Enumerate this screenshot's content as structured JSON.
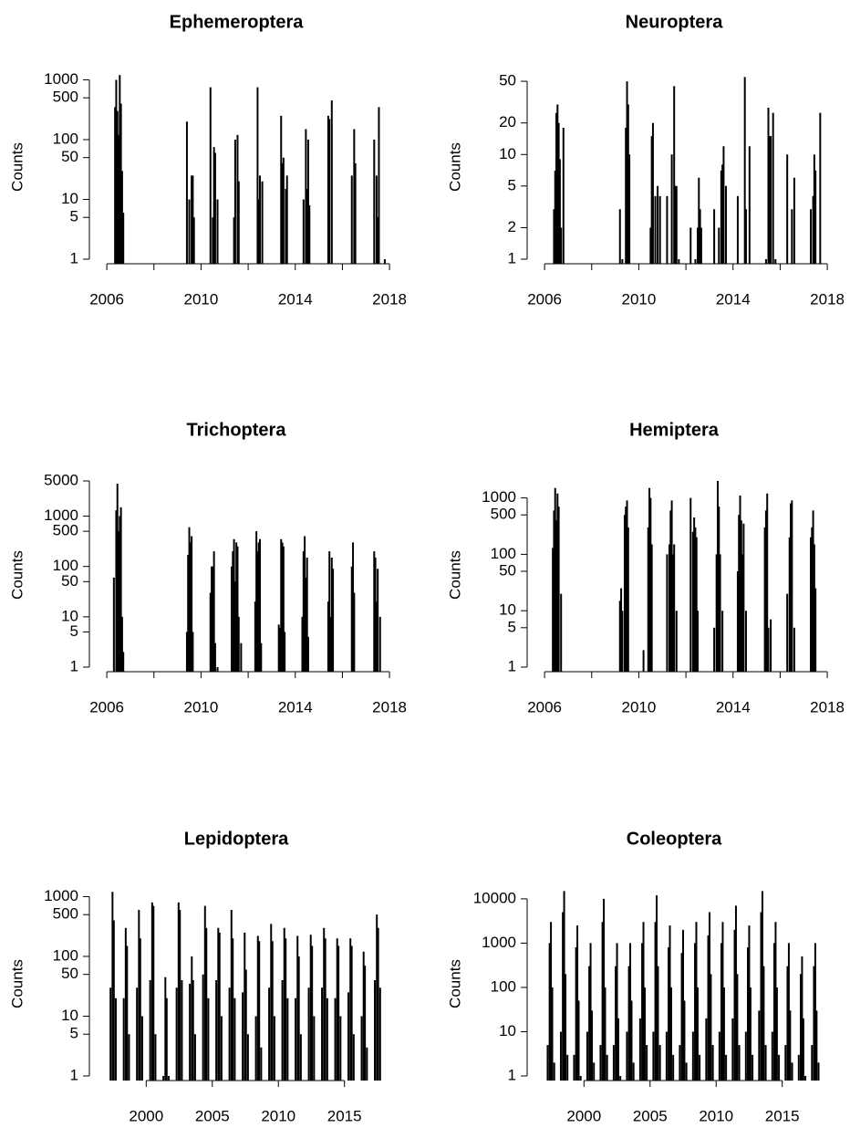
{
  "chart_data": [
    {
      "type": "spike",
      "title": "Ephemeroptera",
      "y_label": "Counts",
      "color": "#000000",
      "log_y": true,
      "xlim": [
        2005.26,
        2018.5
      ],
      "xticks": [
        2006,
        {
          "value": 2008,
          "label": null
        },
        2010,
        {
          "value": 2012,
          "label": null
        },
        2014,
        {
          "value": 2016,
          "label": null
        },
        2018
      ],
      "ylim": [
        1,
        1300
      ],
      "yticks": [
        1,
        5,
        10,
        50,
        100,
        500,
        1000
      ],
      "x": [
        2006.35,
        2006.4,
        2006.45,
        2006.5,
        2006.55,
        2006.6,
        2006.65,
        2006.7,
        2009.4,
        2009.5,
        2009.6,
        2009.65,
        2009.7,
        2010.4,
        2010.5,
        2010.55,
        2010.6,
        2010.7,
        2011.4,
        2011.45,
        2011.55,
        2011.6,
        2012.4,
        2012.45,
        2012.5,
        2012.6,
        2013.4,
        2013.45,
        2013.5,
        2013.6,
        2013.65,
        2014.35,
        2014.45,
        2014.5,
        2014.55,
        2014.6,
        2015.4,
        2015.45,
        2015.55,
        2016.4,
        2016.5,
        2016.55,
        2017.35,
        2017.45,
        2017.5,
        2017.55,
        2017.8
      ],
      "values": [
        350,
        1000,
        300,
        120,
        1200,
        400,
        30,
        6,
        200,
        10,
        25,
        25,
        5,
        750,
        5,
        75,
        60,
        10,
        5,
        100,
        120,
        20,
        750,
        10,
        25,
        20,
        250,
        40,
        50,
        15,
        25,
        10,
        150,
        15,
        100,
        8,
        250,
        220,
        450,
        25,
        150,
        40,
        100,
        25,
        5,
        350,
        1
      ]
    },
    {
      "type": "spike",
      "title": "Neuroptera",
      "y_label": "Counts",
      "color": "#000000",
      "log_y": true,
      "xlim": [
        2005.26,
        2018.5
      ],
      "xticks": [
        2006,
        {
          "value": 2008,
          "label": null
        },
        2010,
        {
          "value": 2012,
          "label": null
        },
        2014,
        {
          "value": 2016,
          "label": null
        },
        2018
      ],
      "ylim": [
        1,
        60
      ],
      "yticks": [
        1,
        2,
        5,
        10,
        20,
        50
      ],
      "x": [
        2006.4,
        2006.45,
        2006.5,
        2006.55,
        2006.6,
        2006.65,
        2006.7,
        2006.8,
        2009.2,
        2009.3,
        2009.45,
        2009.5,
        2009.55,
        2009.6,
        2010.5,
        2010.55,
        2010.6,
        2010.7,
        2010.8,
        2010.9,
        2011.2,
        2011.4,
        2011.5,
        2011.55,
        2011.6,
        2011.7,
        2012.2,
        2012.4,
        2012.5,
        2012.55,
        2012.6,
        2012.65,
        2013.2,
        2013.4,
        2013.5,
        2013.55,
        2013.6,
        2013.7,
        2014.2,
        2014.5,
        2014.55,
        2014.7,
        2015.4,
        2015.5,
        2015.55,
        2015.6,
        2015.7,
        2015.8,
        2016.3,
        2016.5,
        2016.6,
        2017.3,
        2017.4,
        2017.45,
        2017.5,
        2017.7
      ],
      "values": [
        3,
        7,
        25,
        30,
        20,
        9,
        2,
        18,
        3,
        1,
        18,
        50,
        30,
        10,
        2,
        15,
        20,
        4,
        5,
        4,
        4,
        10,
        45,
        5,
        5,
        1,
        2,
        1,
        2,
        6,
        3,
        2,
        3,
        2,
        7,
        8,
        12,
        5,
        4,
        55,
        3,
        12,
        1,
        28,
        15,
        15,
        25,
        1,
        10,
        3,
        6,
        3,
        4,
        10,
        7,
        25
      ]
    },
    {
      "type": "spike",
      "title": "Trichoptera",
      "y_label": "Counts",
      "color": "#000000",
      "log_y": true,
      "xlim": [
        2005.26,
        2018.5
      ],
      "xticks": [
        2006,
        {
          "value": 2008,
          "label": null
        },
        2010,
        {
          "value": 2012,
          "label": null
        },
        2014,
        {
          "value": 2016,
          "label": null
        },
        2018
      ],
      "ylim": [
        1,
        5000
      ],
      "yticks": [
        1,
        5,
        10,
        50,
        100,
        500,
        1000,
        5000
      ],
      "x": [
        2006.3,
        2006.4,
        2006.45,
        2006.5,
        2006.55,
        2006.6,
        2006.65,
        2006.7,
        2009.4,
        2009.45,
        2009.5,
        2009.55,
        2009.6,
        2009.65,
        2010.4,
        2010.45,
        2010.5,
        2010.55,
        2010.6,
        2010.7,
        2011.3,
        2011.35,
        2011.4,
        2011.45,
        2011.5,
        2011.55,
        2011.6,
        2011.7,
        2012.3,
        2012.35,
        2012.4,
        2012.45,
        2012.5,
        2012.55,
        2013.3,
        2013.35,
        2013.4,
        2013.45,
        2013.5,
        2013.55,
        2014.3,
        2014.35,
        2014.4,
        2014.45,
        2014.5,
        2014.55,
        2015.4,
        2015.45,
        2015.5,
        2015.55,
        2015.6,
        2016.4,
        2016.45,
        2016.5,
        2017.35,
        2017.4,
        2017.45,
        2017.5,
        2017.6
      ],
      "values": [
        60,
        1300,
        4400,
        500,
        1000,
        1500,
        10,
        2,
        5,
        170,
        600,
        300,
        400,
        5,
        30,
        100,
        100,
        200,
        3,
        1,
        100,
        200,
        350,
        50,
        300,
        250,
        10,
        3,
        20,
        500,
        200,
        300,
        350,
        3,
        7,
        6,
        350,
        300,
        250,
        5,
        10,
        200,
        400,
        60,
        150,
        4,
        20,
        200,
        10,
        150,
        90,
        100,
        300,
        30,
        200,
        150,
        20,
        90,
        10
      ]
    },
    {
      "type": "spike",
      "title": "Hemiptera",
      "y_label": "Counts",
      "color": "#000000",
      "log_y": true,
      "xlim": [
        2005.26,
        2018.5
      ],
      "xticks": [
        2006,
        {
          "value": 2008,
          "label": null
        },
        2010,
        {
          "value": 2012,
          "label": null
        },
        2014,
        {
          "value": 2016,
          "label": null
        },
        2018
      ],
      "ylim": [
        1,
        2000
      ],
      "yticks": [
        1,
        5,
        10,
        50,
        100,
        500,
        1000
      ],
      "x": [
        2006.35,
        2006.4,
        2006.45,
        2006.5,
        2006.55,
        2006.6,
        2006.7,
        2009.2,
        2009.25,
        2009.3,
        2009.4,
        2009.45,
        2009.5,
        2009.55,
        2010.2,
        2010.4,
        2010.45,
        2010.5,
        2010.55,
        2011.2,
        2011.3,
        2011.35,
        2011.4,
        2011.45,
        2011.5,
        2011.6,
        2012.2,
        2012.3,
        2012.35,
        2012.4,
        2012.45,
        2012.5,
        2013.2,
        2013.3,
        2013.35,
        2013.4,
        2013.45,
        2013.55,
        2014.2,
        2014.25,
        2014.3,
        2014.35,
        2014.4,
        2014.45,
        2014.55,
        2015.35,
        2015.4,
        2015.45,
        2015.5,
        2015.6,
        2016.3,
        2016.4,
        2016.45,
        2016.5,
        2016.6,
        2017.3,
        2017.35,
        2017.4,
        2017.45,
        2017.5
      ],
      "values": [
        130,
        600,
        1500,
        400,
        1200,
        700,
        20,
        15,
        25,
        10,
        500,
        700,
        900,
        300,
        2,
        300,
        1500,
        1000,
        150,
        100,
        150,
        600,
        900,
        100,
        150,
        10,
        1000,
        250,
        450,
        300,
        200,
        10,
        5,
        100,
        2000,
        700,
        100,
        10,
        50,
        500,
        1100,
        400,
        100,
        350,
        10,
        300,
        600,
        1200,
        5,
        7,
        20,
        200,
        800,
        900,
        5,
        200,
        300,
        600,
        150,
        25
      ]
    },
    {
      "type": "spike",
      "title": "Lepidoptera",
      "y_label": "Counts",
      "color": "#000000",
      "log_y": true,
      "xlim": [
        1995.7,
        2019.3
      ],
      "xticks": [
        2000,
        2005,
        2010,
        2015
      ],
      "ylim": [
        1,
        1300
      ],
      "yticks": [
        1,
        5,
        10,
        50,
        100,
        500,
        1000
      ],
      "x": [
        1997.3,
        1997.45,
        1997.55,
        1997.7,
        1998.3,
        1998.45,
        1998.55,
        1998.7,
        1999.3,
        1999.45,
        1999.55,
        1999.7,
        2000.3,
        2000.45,
        2000.55,
        2000.7,
        2001.3,
        2001.45,
        2001.55,
        2001.7,
        2002.3,
        2002.45,
        2002.55,
        2002.7,
        2003.3,
        2003.45,
        2003.55,
        2003.7,
        2004.3,
        2004.45,
        2004.55,
        2004.7,
        2005.3,
        2005.45,
        2005.55,
        2005.7,
        2006.3,
        2006.45,
        2006.55,
        2006.7,
        2007.3,
        2007.45,
        2007.55,
        2007.7,
        2008.3,
        2008.45,
        2008.55,
        2008.7,
        2009.3,
        2009.45,
        2009.55,
        2009.7,
        2010.3,
        2010.45,
        2010.55,
        2010.7,
        2011.3,
        2011.45,
        2011.55,
        2011.7,
        2012.3,
        2012.45,
        2012.55,
        2012.7,
        2013.3,
        2013.45,
        2013.55,
        2013.7,
        2014.3,
        2014.45,
        2014.55,
        2014.7,
        2015.3,
        2015.45,
        2015.55,
        2015.7,
        2016.3,
        2016.45,
        2016.55,
        2016.7,
        2017.3,
        2017.45,
        2017.55,
        2017.7
      ],
      "values": [
        30,
        1200,
        400,
        20,
        20,
        300,
        150,
        5,
        30,
        600,
        200,
        10,
        40,
        800,
        700,
        5,
        1,
        45,
        20,
        1,
        30,
        800,
        600,
        40,
        35,
        100,
        40,
        5,
        50,
        700,
        300,
        20,
        40,
        300,
        250,
        10,
        30,
        600,
        200,
        20,
        25,
        250,
        60,
        5,
        10,
        220,
        180,
        3,
        30,
        350,
        180,
        10,
        40,
        300,
        200,
        20,
        20,
        220,
        100,
        5,
        30,
        230,
        150,
        10,
        30,
        300,
        200,
        20,
        20,
        200,
        150,
        10,
        25,
        200,
        150,
        5,
        10,
        120,
        70,
        3,
        40,
        500,
        300,
        30
      ]
    },
    {
      "type": "spike",
      "title": "Coleoptera",
      "y_label": "Counts",
      "color": "#000000",
      "log_y": true,
      "xlim": [
        1995.7,
        2019.3
      ],
      "xticks": [
        2000,
        2005,
        2010,
        2015
      ],
      "ylim": [
        1,
        16000
      ],
      "yticks": [
        1,
        10,
        100,
        1000,
        10000
      ],
      "x": [
        1997.25,
        1997.4,
        1997.5,
        1997.6,
        1997.75,
        1998.25,
        1998.4,
        1998.5,
        1998.6,
        1998.75,
        1999.25,
        1999.4,
        1999.5,
        1999.6,
        1999.75,
        2000.25,
        2000.4,
        2000.5,
        2000.6,
        2000.75,
        2001.25,
        2001.4,
        2001.5,
        2001.6,
        2001.75,
        2002.25,
        2002.4,
        2002.5,
        2002.6,
        2002.75,
        2003.25,
        2003.4,
        2003.5,
        2003.6,
        2003.75,
        2004.25,
        2004.4,
        2004.5,
        2004.6,
        2004.75,
        2005.25,
        2005.4,
        2005.5,
        2005.6,
        2005.75,
        2006.25,
        2006.4,
        2006.5,
        2006.6,
        2006.75,
        2007.25,
        2007.4,
        2007.5,
        2007.6,
        2007.75,
        2008.25,
        2008.4,
        2008.5,
        2008.6,
        2008.75,
        2009.25,
        2009.4,
        2009.5,
        2009.6,
        2009.75,
        2010.25,
        2010.4,
        2010.5,
        2010.6,
        2010.75,
        2011.25,
        2011.4,
        2011.5,
        2011.6,
        2011.75,
        2012.25,
        2012.4,
        2012.5,
        2012.6,
        2012.75,
        2013.25,
        2013.4,
        2013.5,
        2013.6,
        2013.75,
        2014.25,
        2014.4,
        2014.5,
        2014.6,
        2014.75,
        2015.25,
        2015.4,
        2015.5,
        2015.6,
        2015.75,
        2016.25,
        2016.4,
        2016.5,
        2016.6,
        2016.75,
        2017.25,
        2017.4,
        2017.5,
        2017.6,
        2017.75
      ],
      "values": [
        5,
        1000,
        3000,
        100,
        2,
        10,
        5000,
        15000,
        200,
        3,
        3,
        800,
        2500,
        50,
        1,
        10,
        300,
        1000,
        30,
        2,
        5,
        3000,
        10000,
        100,
        3,
        5,
        300,
        1000,
        20,
        1,
        10,
        300,
        1000,
        50,
        2,
        20,
        1000,
        3000,
        100,
        5,
        10,
        3000,
        12000,
        300,
        5,
        10,
        800,
        2500,
        100,
        3,
        5,
        600,
        2000,
        50,
        2,
        10,
        1000,
        3000,
        100,
        3,
        20,
        1500,
        5000,
        200,
        5,
        10,
        1000,
        3000,
        100,
        3,
        20,
        2000,
        7000,
        200,
        5,
        10,
        800,
        2500,
        100,
        3,
        30,
        5000,
        15000,
        300,
        5,
        10,
        1000,
        3000,
        100,
        3,
        5,
        300,
        1000,
        30,
        2,
        3,
        200,
        500,
        20,
        1,
        5,
        300,
        1000,
        30,
        2
      ]
    }
  ]
}
